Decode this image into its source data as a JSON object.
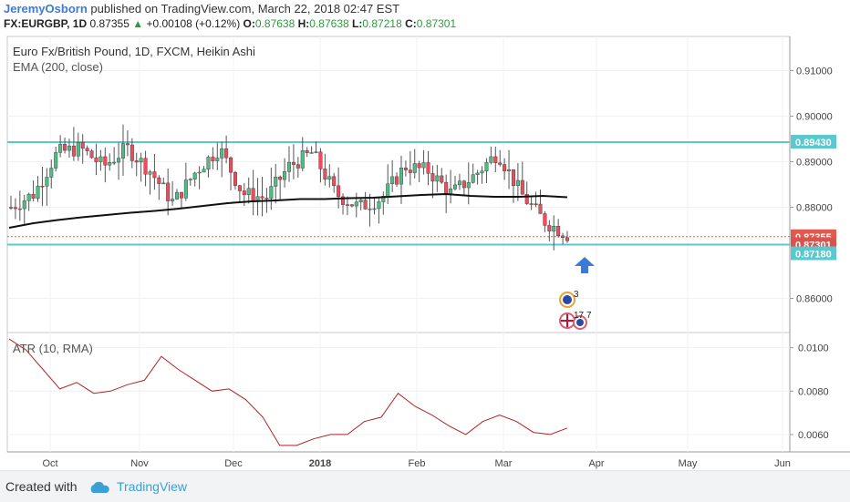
{
  "header": {
    "author": "JeremyOsborn",
    "published_text": "published on TradingView.com, March 22, 2018 02:47 EST",
    "symbol_line": {
      "symbol": "FX:EURGBP, 1D",
      "last": "0.87355",
      "arrow": "▲",
      "change": "+0.00108 (+0.12%)",
      "o_label": "O:",
      "o": "0.87638",
      "h_label": "H:",
      "h": "0.87638",
      "l_label": "L:",
      "l": "0.87218",
      "c_label": "C:",
      "c": "0.87301"
    }
  },
  "chart_data": [
    {
      "type": "candlestick",
      "title": "Euro Fx/British Pound, 1D, FXCM, Heikin Ashi",
      "indicator_label": "EMA (200, close)",
      "y_ticks": [
        "0.91000",
        "0.90000",
        "0.89000",
        "0.88000",
        "0.86000"
      ],
      "ylim": [
        0.8525,
        0.9175
      ],
      "x_ticks": [
        "Oct",
        "Nov",
        "Dec",
        "2018",
        "Feb",
        "Mar",
        "Apr",
        "May",
        "Jun"
      ],
      "horizontal_lines": [
        {
          "value": 0.8943,
          "label": "0.89430",
          "color": "#5bc8d0"
        },
        {
          "value": 0.8718,
          "label": "0.87180",
          "color": "#5bc8d0"
        }
      ],
      "price_markers": [
        {
          "value": 0.87355,
          "label": "0.87355",
          "color": "#e05a4f"
        },
        {
          "value": 0.87301,
          "label": "0.87301",
          "color": "#e05a4f"
        }
      ],
      "ema_200": [
        0.8755,
        0.8765,
        0.8772,
        0.8778,
        0.8783,
        0.8788,
        0.8792,
        0.8797,
        0.8803,
        0.8809,
        0.8813,
        0.8815,
        0.8818,
        0.8818,
        0.882,
        0.8821,
        0.8824,
        0.8827,
        0.8829,
        0.8825,
        0.8823,
        0.8823,
        0.8825,
        0.8822
      ],
      "candles_summary": [
        0.88,
        0.883,
        0.892,
        0.893,
        0.889,
        0.893,
        0.888,
        0.881,
        0.888,
        0.893,
        0.883,
        0.882,
        0.889,
        0.892,
        0.883,
        0.88,
        0.882,
        0.889,
        0.888,
        0.883,
        0.887,
        0.892,
        0.883,
        0.877,
        0.874
      ],
      "up_arrow_color": "#3a7bd5",
      "up_color": "#53b987",
      "down_color": "#eb4d5c"
    },
    {
      "type": "line",
      "title": "ATR (10, RMA)",
      "y_ticks": [
        "0.0100",
        "0.0080",
        "0.0060"
      ],
      "ylim": [
        0.0052,
        0.0107
      ],
      "values": [
        0.0104,
        0.0099,
        0.009,
        0.0081,
        0.0084,
        0.0079,
        0.008,
        0.0083,
        0.0085,
        0.0096,
        0.009,
        0.0085,
        0.008,
        0.0081,
        0.0076,
        0.0068,
        0.0055,
        0.0055,
        0.0058,
        0.006,
        0.006,
        0.0066,
        0.0068,
        0.0079,
        0.0073,
        0.0069,
        0.0064,
        0.006,
        0.0066,
        0.0069,
        0.0066,
        0.0061,
        0.006,
        0.0063
      ],
      "color": "#b22222"
    }
  ],
  "events": {
    "badge_1": "3",
    "badge_2": "17",
    "badge_3": "7"
  },
  "footer": {
    "created_with": "Created with",
    "brand": "TradingView"
  }
}
